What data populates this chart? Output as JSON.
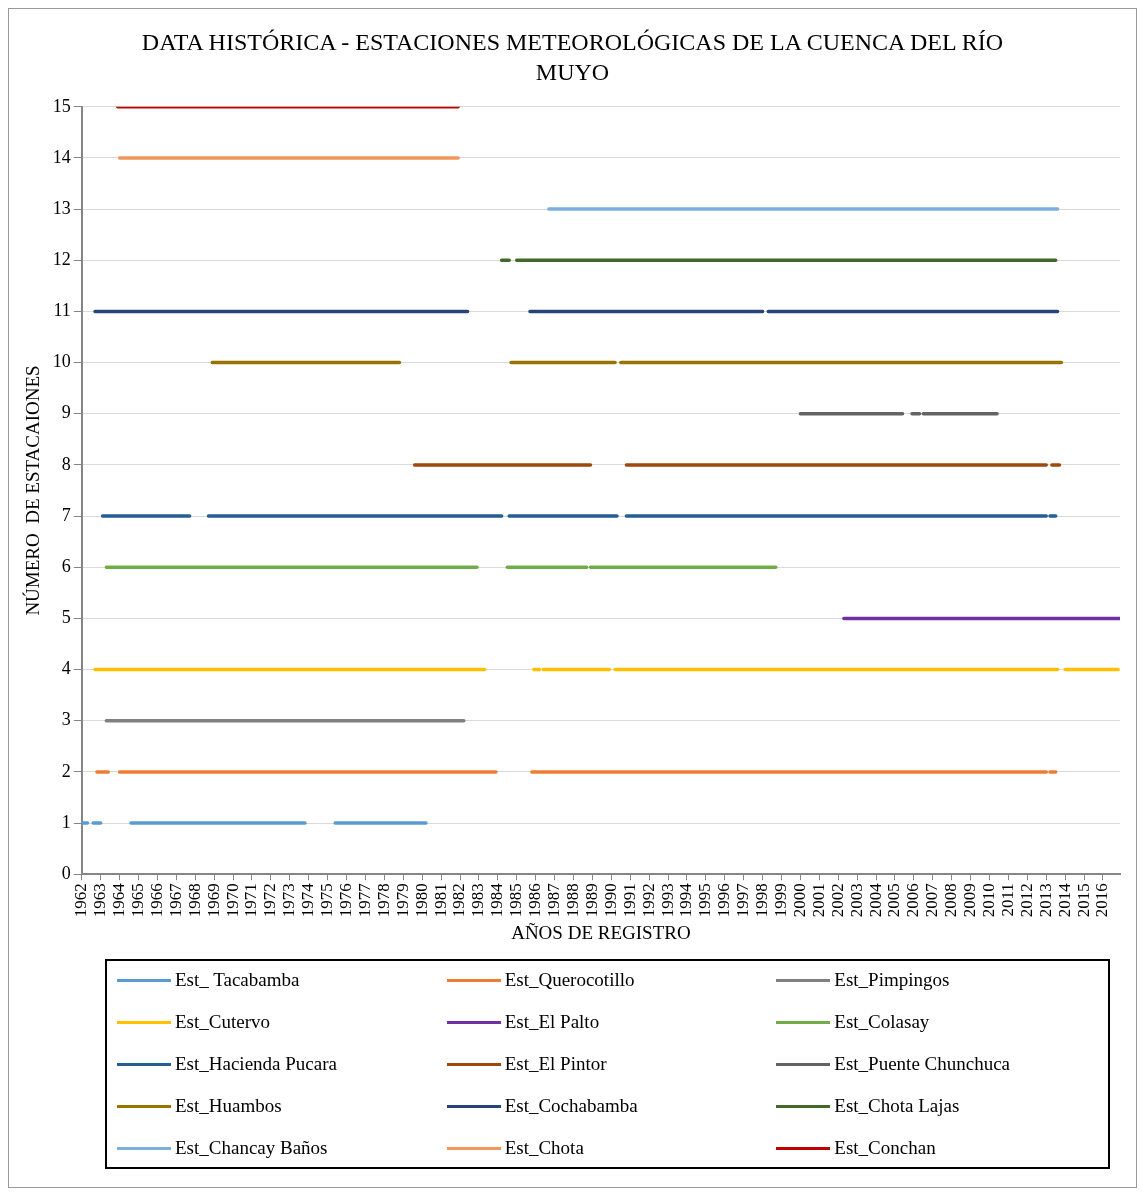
{
  "chart_data": {
    "type": "line",
    "title": "DATA HISTÓRICA - ESTACIONES METEOROLÓGICAS DE LA CUENCA DEL RÍO MUYO",
    "xlabel": "AÑOS DE REGISTRO",
    "ylabel": "NÚMERO  DE ESTACAIONES",
    "xlim": [
      1962,
      2016.9
    ],
    "xticks": [
      1962,
      1963,
      1964,
      1965,
      1966,
      1967,
      1968,
      1969,
      1970,
      1971,
      1972,
      1973,
      1974,
      1975,
      1976,
      1977,
      1978,
      1979,
      1980,
      1981,
      1982,
      1983,
      1984,
      1985,
      1986,
      1987,
      1988,
      1989,
      1990,
      1991,
      1992,
      1993,
      1994,
      1995,
      1996,
      1997,
      1998,
      1999,
      2000,
      2001,
      2002,
      2003,
      2004,
      2005,
      2006,
      2007,
      2008,
      2009,
      2010,
      2011,
      2012,
      2013,
      2014,
      2015,
      2016
    ],
    "ylim": [
      0,
      15
    ],
    "yticks": [
      0,
      1,
      2,
      3,
      4,
      5,
      6,
      7,
      8,
      9,
      10,
      11,
      12,
      13,
      14,
      15
    ],
    "grid": "y",
    "legend": "bottom",
    "marker": "none",
    "line_style": "solid",
    "series": [
      {
        "name": "Est_ Tacabamba",
        "color": "#5b9bd5",
        "x": [
          1962.0,
          1962.3,
          1962.45,
          1962.6,
          1963.0,
          1963.8,
          1964.6,
          1973.8,
          1974.6,
          1975.4,
          1980.2
        ],
        "values": [
          1,
          1,
          null,
          1,
          1,
          null,
          1,
          1,
          null,
          1,
          1
        ]
      },
      {
        "name": "Est_Querocotillo",
        "color": "#ed7d31",
        "x": [
          1962.8,
          1963.4,
          1963.7,
          1964.0,
          1983.9,
          1984.8,
          1985.8,
          2013.0,
          2013.1,
          2013.2,
          2013.5
        ],
        "values": [
          2,
          2,
          null,
          2,
          2,
          null,
          2,
          2,
          null,
          2,
          2
        ]
      },
      {
        "name": "Est_Pimpingos",
        "color": "#808080",
        "x": [
          1963.3,
          1982.2
        ],
        "values": [
          3,
          3
        ]
      },
      {
        "name": "Est_Cutervo",
        "color": "#ffc000",
        "x": [
          1962.7,
          1983.3,
          1984.6,
          1985.9,
          1986.2,
          1986.3,
          1986.4,
          1989.9,
          1990.0,
          1990.2,
          2013.6,
          2013.8,
          2014.0,
          2016.8
        ],
        "values": [
          4,
          4,
          null,
          4,
          4,
          null,
          4,
          4,
          null,
          4,
          4,
          null,
          4,
          4
        ]
      },
      {
        "name": "Est_El Palto",
        "color": "#7030a0",
        "x": [
          2002.3,
          2016.9
        ],
        "values": [
          5,
          5
        ]
      },
      {
        "name": "Est_Colasay",
        "color": "#70ad47",
        "x": [
          1963.3,
          1982.9,
          1983.7,
          1984.5,
          1988.7,
          1988.8,
          1988.9,
          1998.7
        ],
        "values": [
          6,
          6,
          null,
          6,
          6,
          null,
          6,
          6
        ]
      },
      {
        "name": "Est_Hacienda Pucara",
        "color": "#255e91",
        "x": [
          1963.1,
          1967.7,
          1968.2,
          1968.7,
          1984.2,
          1984.4,
          1984.6,
          1990.3,
          1990.5,
          1990.8,
          2013.0,
          2013.1,
          2013.2,
          2013.5
        ],
        "values": [
          7,
          7,
          null,
          7,
          7,
          null,
          7,
          7,
          null,
          7,
          7,
          null,
          7,
          7
        ]
      },
      {
        "name": "Est_El Pintor",
        "color": "#9e480e",
        "x": [
          1979.6,
          1988.9,
          1989.8,
          1990.8,
          2013.0,
          2013.15,
          2013.3,
          2013.7
        ],
        "values": [
          8,
          8,
          null,
          8,
          8,
          null,
          8,
          8
        ]
      },
      {
        "name": "Est_Puente Chunchuca",
        "color": "#636363",
        "x": [
          2000.0,
          2005.4,
          2005.6,
          2005.9,
          2006.3,
          2006.4,
          2006.5,
          2010.4
        ],
        "values": [
          9,
          9,
          null,
          9,
          9,
          null,
          9,
          9
        ]
      },
      {
        "name": "Est_Huambos",
        "color": "#997300",
        "x": [
          1968.9,
          1978.8,
          1981.7,
          1984.7,
          1990.2,
          1990.35,
          1990.5,
          2013.8
        ],
        "values": [
          10,
          10,
          null,
          10,
          10,
          null,
          10,
          10
        ]
      },
      {
        "name": "Est_Cochabamba",
        "color": "#264478",
        "x": [
          1962.7,
          1982.4,
          1984.0,
          1985.7,
          1998.0,
          1998.15,
          1998.3,
          2013.6
        ],
        "values": [
          11,
          11,
          null,
          11,
          11,
          null,
          11,
          11
        ]
      },
      {
        "name": "Est_Chota Lajas",
        "color": "#43682b",
        "x": [
          1984.2,
          1984.6,
          1984.8,
          1985.0,
          2013.5
        ],
        "values": [
          12,
          12,
          null,
          12,
          12
        ]
      },
      {
        "name": "Est_Chancay Baños",
        "color": "#7cafdd",
        "x": [
          1986.7,
          2013.6
        ],
        "values": [
          13,
          13
        ]
      },
      {
        "name": "Est_Chota",
        "color": "#f1975a",
        "x": [
          1964.0,
          1981.9
        ],
        "values": [
          14,
          14
        ]
      },
      {
        "name": "Est_Conchan",
        "color": "#c00000",
        "x": [
          1963.9,
          1981.9
        ],
        "values": [
          15,
          15
        ]
      }
    ]
  }
}
